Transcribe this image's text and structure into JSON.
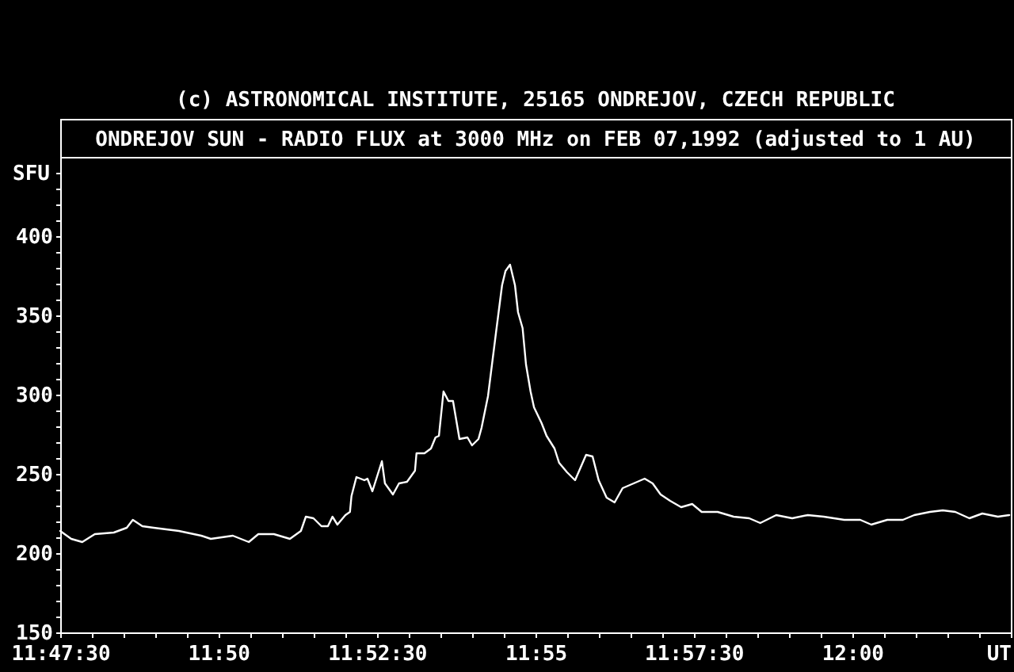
{
  "chart_data": {
    "type": "line",
    "title": "ONDREJOV SUN - RADIO FLUX at 3000 MHz on FEB 07,1992 (adjusted to 1 AU)",
    "annotations": [
      "(c) ASTRONOMICAL INSTITUTE, 25165 ONDREJOV, CZECH REPUBLIC"
    ],
    "xlabel": "UT",
    "ylabel": "SFU",
    "line_style": "solid",
    "x": [
      11.7917,
      11.7946,
      11.7975,
      11.8008,
      11.8058,
      11.8092,
      11.8108,
      11.8133,
      11.8163,
      11.8229,
      11.8288,
      11.8313,
      11.8371,
      11.8413,
      11.8438,
      11.8479,
      11.8521,
      11.855,
      11.8563,
      11.8583,
      11.8604,
      11.8621,
      11.8633,
      11.8646,
      11.8667,
      11.8679,
      11.8683,
      11.8696,
      11.8717,
      11.8725,
      11.8738,
      11.8763,
      11.8771,
      11.8792,
      11.8808,
      11.8829,
      11.885,
      11.8854,
      11.8875,
      11.8892,
      11.8904,
      11.8913,
      11.8925,
      11.8938,
      11.895,
      11.8967,
      11.8988,
      11.9,
      11.9017,
      11.9025,
      11.9042,
      11.9063,
      11.9079,
      11.9088,
      11.91,
      11.9113,
      11.9121,
      11.9133,
      11.9142,
      11.9154,
      11.9163,
      11.9183,
      11.9196,
      11.9217,
      11.9229,
      11.925,
      11.9271,
      11.93,
      11.9317,
      11.9333,
      11.9354,
      11.9375,
      11.9396,
      11.9425,
      11.9454,
      11.9475,
      11.9496,
      11.9521,
      11.955,
      11.9579,
      11.9604,
      11.9646,
      11.9688,
      11.9729,
      11.9758,
      11.98,
      11.9842,
      11.9883,
      11.9925,
      11.9979,
      12.0021,
      12.005,
      12.0092,
      12.0133,
      12.0163,
      12.0204,
      12.0238,
      12.0271,
      12.0308,
      12.0342,
      12.0383,
      12.0413
    ],
    "series": [
      {
        "color": "#ffffff",
        "values": [
          214,
          209,
          207,
          212,
          213,
          216,
          221,
          217,
          216,
          214,
          211,
          209,
          211,
          207,
          212,
          212,
          209,
          214,
          223,
          222,
          217,
          217,
          223,
          218,
          224,
          226,
          236,
          248,
          246,
          247,
          239,
          258,
          244,
          237,
          244,
          245,
          252,
          263,
          263,
          266,
          273,
          274,
          302,
          296,
          296,
          272,
          273,
          268,
          272,
          279,
          299,
          339,
          369,
          378,
          382,
          369,
          352,
          342,
          319,
          302,
          292,
          282,
          274,
          266,
          257,
          251,
          246,
          262,
          261,
          246,
          235,
          232,
          241,
          244,
          247,
          244,
          237,
          233,
          229,
          231,
          226,
          226,
          223,
          222,
          219,
          224,
          222,
          224,
          223,
          221,
          221,
          218,
          221,
          221,
          224,
          226,
          227,
          226,
          222,
          225,
          223,
          224
        ]
      }
    ],
    "xlim": [
      11.7917,
      12.0417
    ],
    "xticks": [
      {
        "value": 11.7917,
        "label": "11:47:30"
      },
      {
        "value": 11.8,
        "label": null
      },
      {
        "value": 11.8083,
        "label": null
      },
      {
        "value": 11.8167,
        "label": null
      },
      {
        "value": 11.825,
        "label": null
      },
      {
        "value": 11.8333,
        "label": "11:50"
      },
      {
        "value": 11.8417,
        "label": null
      },
      {
        "value": 11.85,
        "label": null
      },
      {
        "value": 11.8583,
        "label": null
      },
      {
        "value": 11.8667,
        "label": null
      },
      {
        "value": 11.875,
        "label": "11:52:30"
      },
      {
        "value": 11.8833,
        "label": null
      },
      {
        "value": 11.8917,
        "label": null
      },
      {
        "value": 11.9,
        "label": null
      },
      {
        "value": 11.9083,
        "label": null
      },
      {
        "value": 11.9167,
        "label": "11:55"
      },
      {
        "value": 11.925,
        "label": null
      },
      {
        "value": 11.9333,
        "label": null
      },
      {
        "value": 11.9417,
        "label": null
      },
      {
        "value": 11.95,
        "label": null
      },
      {
        "value": 11.9583,
        "label": "11:57:30"
      },
      {
        "value": 11.9667,
        "label": null
      },
      {
        "value": 11.975,
        "label": null
      },
      {
        "value": 11.9833,
        "label": null
      },
      {
        "value": 11.9917,
        "label": null
      },
      {
        "value": 12,
        "label": "12:00"
      },
      {
        "value": 12.0083,
        "label": null
      },
      {
        "value": 12.0167,
        "label": null
      },
      {
        "value": 12.025,
        "label": null
      },
      {
        "value": 12.0333,
        "label": null
      },
      {
        "value": 12.0417,
        "label": null
      }
    ],
    "ylim": [
      150,
      450
    ],
    "yticks": [
      150,
      {
        "value": 160,
        "label": null
      },
      {
        "value": 170,
        "label": null
      },
      {
        "value": 180,
        "label": null
      },
      {
        "value": 190,
        "label": null
      },
      200,
      {
        "value": 210,
        "label": null
      },
      {
        "value": 220,
        "label": null
      },
      {
        "value": 230,
        "label": null
      },
      {
        "value": 240,
        "label": null
      },
      250,
      {
        "value": 260,
        "label": null
      },
      {
        "value": 270,
        "label": null
      },
      {
        "value": 280,
        "label": null
      },
      {
        "value": 290,
        "label": null
      },
      300,
      {
        "value": 310,
        "label": null
      },
      {
        "value": 320,
        "label": null
      },
      {
        "value": 330,
        "label": null
      },
      {
        "value": 340,
        "label": null
      },
      350,
      {
        "value": 360,
        "label": null
      },
      {
        "value": 370,
        "label": null
      },
      {
        "value": 380,
        "label": null
      },
      {
        "value": 390,
        "label": null
      },
      400,
      {
        "value": 410,
        "label": null
      },
      {
        "value": 420,
        "label": null
      },
      {
        "value": 430,
        "label": null
      },
      {
        "value": 440,
        "label": null
      }
    ]
  }
}
